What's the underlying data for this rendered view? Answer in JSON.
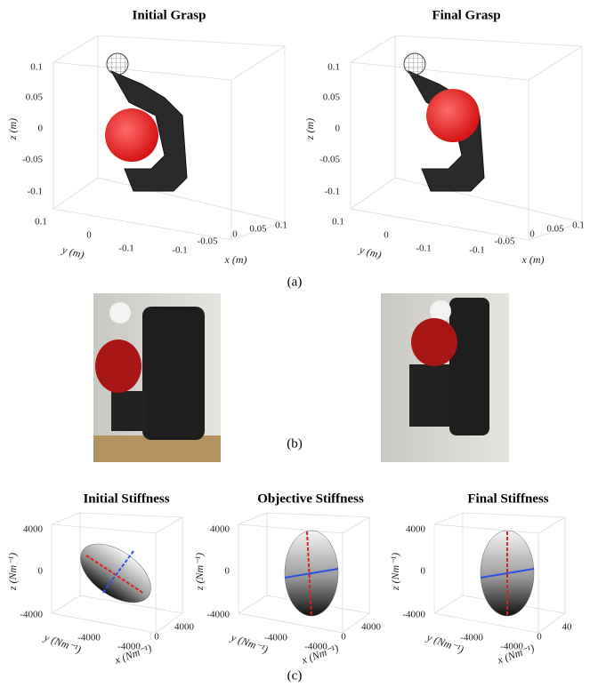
{
  "panel_a": {
    "caption": "(a)",
    "plots": [
      {
        "title": "Initial Grasp",
        "z_label": "z (m)",
        "y_label": "y (m)",
        "x_label": "x (m)",
        "z_ticks": [
          "0.1",
          "0.05",
          "0",
          "-0.05",
          "-0.1"
        ],
        "y_ticks": [
          "0.1",
          "0",
          "-0.1"
        ],
        "x_ticks": [
          "-0.1",
          "-0.05",
          "0",
          "0.05",
          "0.1"
        ]
      },
      {
        "title": "Final Grasp",
        "z_label": "z (m)",
        "y_label": "y (m)",
        "x_label": "x (m)",
        "z_ticks": [
          "0.1",
          "0.05",
          "0",
          "-0.05",
          "-0.1"
        ],
        "y_ticks": [
          "0.1",
          "0",
          "-0.1"
        ],
        "x_ticks": [
          "-0.1",
          "-0.05",
          "0",
          "0.05",
          "0.1"
        ]
      }
    ]
  },
  "panel_b": {
    "caption": "(b)"
  },
  "panel_c": {
    "caption": "(c)",
    "plots": [
      {
        "title": "Initial Stiffness",
        "z_label": "z (Nm⁻¹)",
        "y_label": "y (Nm⁻¹)",
        "x_label": "x (Nm⁻¹)",
        "z_ticks": [
          "4000",
          "0",
          "-4000"
        ],
        "y_ticks": [
          "-4000"
        ],
        "x_ticks": [
          "-4000",
          "0",
          "4000"
        ]
      },
      {
        "title": "Objective Stiffness",
        "z_label": "z (Nm⁻¹)",
        "y_label": "y (Nm⁻¹)",
        "x_label": "x (Nm⁻¹)",
        "z_ticks": [
          "4000",
          "0",
          "-4000"
        ],
        "y_ticks": [
          "-4000"
        ],
        "x_ticks": [
          "-4000",
          "0",
          "4000"
        ]
      },
      {
        "title": "Final Stiffness",
        "z_label": "z (Nm⁻¹)",
        "y_label": "y (Nm⁻¹)",
        "x_label": "x (Nm⁻¹)",
        "z_ticks": [
          "4000",
          "0",
          "-4000"
        ],
        "y_ticks": [
          "-4000"
        ],
        "x_ticks": [
          "-4000",
          "0",
          "40"
        ]
      }
    ]
  }
}
